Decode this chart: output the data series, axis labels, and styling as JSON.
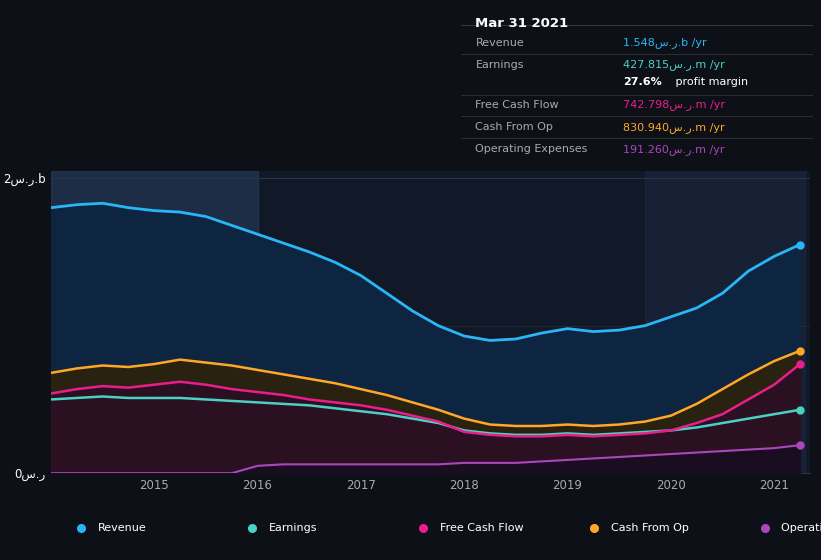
{
  "bg_color": "#0d1117",
  "plot_bg_color": "#111827",
  "x": [
    2014.0,
    2014.25,
    2014.5,
    2014.75,
    2015.0,
    2015.25,
    2015.5,
    2015.75,
    2016.0,
    2016.25,
    2016.5,
    2016.75,
    2017.0,
    2017.25,
    2017.5,
    2017.75,
    2018.0,
    2018.25,
    2018.5,
    2018.75,
    2019.0,
    2019.25,
    2019.5,
    2019.75,
    2020.0,
    2020.25,
    2020.5,
    2020.75,
    2021.0,
    2021.25
  ],
  "revenue": [
    1.8,
    1.82,
    1.83,
    1.8,
    1.78,
    1.77,
    1.74,
    1.68,
    1.62,
    1.56,
    1.5,
    1.43,
    1.34,
    1.22,
    1.1,
    1.0,
    0.93,
    0.9,
    0.91,
    0.95,
    0.98,
    0.96,
    0.97,
    1.0,
    1.06,
    1.12,
    1.22,
    1.37,
    1.47,
    1.55
  ],
  "earnings": [
    0.5,
    0.51,
    0.52,
    0.51,
    0.51,
    0.51,
    0.5,
    0.49,
    0.48,
    0.47,
    0.46,
    0.44,
    0.42,
    0.4,
    0.37,
    0.34,
    0.29,
    0.27,
    0.26,
    0.26,
    0.27,
    0.26,
    0.27,
    0.28,
    0.29,
    0.31,
    0.34,
    0.37,
    0.4,
    0.43
  ],
  "free_cash_flow": [
    0.54,
    0.57,
    0.59,
    0.58,
    0.6,
    0.62,
    0.6,
    0.57,
    0.55,
    0.53,
    0.5,
    0.48,
    0.46,
    0.43,
    0.39,
    0.35,
    0.28,
    0.26,
    0.25,
    0.25,
    0.26,
    0.25,
    0.26,
    0.27,
    0.29,
    0.34,
    0.4,
    0.5,
    0.6,
    0.74
  ],
  "cash_from_op": [
    0.68,
    0.71,
    0.73,
    0.72,
    0.74,
    0.77,
    0.75,
    0.73,
    0.7,
    0.67,
    0.64,
    0.61,
    0.57,
    0.53,
    0.48,
    0.43,
    0.37,
    0.33,
    0.32,
    0.32,
    0.33,
    0.32,
    0.33,
    0.35,
    0.39,
    0.47,
    0.57,
    0.67,
    0.76,
    0.83
  ],
  "op_expenses": [
    0.0,
    0.0,
    0.0,
    0.0,
    0.0,
    0.0,
    0.0,
    0.0,
    0.05,
    0.06,
    0.06,
    0.06,
    0.06,
    0.06,
    0.06,
    0.06,
    0.07,
    0.07,
    0.07,
    0.08,
    0.09,
    0.1,
    0.11,
    0.12,
    0.13,
    0.14,
    0.15,
    0.16,
    0.17,
    0.19
  ],
  "revenue_color": "#29b6f6",
  "revenue_fill": "#1a3a5c",
  "earnings_color": "#4dd0c4",
  "earnings_fill": "#2a5a50",
  "free_cash_flow_color": "#e91e8c",
  "cash_from_op_color": "#ffa726",
  "op_expenses_color": "#ab47bc",
  "highlight1_x1": 2014.0,
  "highlight1_x2": 2016.0,
  "highlight1_color": "#2a4060",
  "highlight2_x1": 2019.75,
  "highlight2_x2": 2021.3,
  "highlight2_color": "#1e2d4a",
  "ylim": [
    0,
    2.05
  ],
  "xlim": [
    2014.0,
    2021.35
  ],
  "ytick_pos": [
    0,
    2
  ],
  "ytick_labels": [
    "0س.ر",
    "2س.ر.b"
  ],
  "xticks": [
    2015,
    2016,
    2017,
    2018,
    2019,
    2020,
    2021
  ],
  "grid_color": "#2a3444",
  "legend_items": [
    {
      "label": "Revenue",
      "color": "#29b6f6"
    },
    {
      "label": "Earnings",
      "color": "#4dd0c4"
    },
    {
      "label": "Free Cash Flow",
      "color": "#e91e8c"
    },
    {
      "label": "Cash From Op",
      "color": "#ffa726"
    },
    {
      "label": "Operating Expenses",
      "color": "#ab47bc"
    }
  ],
  "table_title": "Mar 31 2021",
  "table_rows": [
    {
      "label": "Revenue",
      "value": "1.548س.ر.b /yr",
      "color": "#29b6f6"
    },
    {
      "label": "Earnings",
      "value": "427.815س.ر.m /yr",
      "color": "#4dd0c4"
    },
    {
      "label": "",
      "value": "27.6% profit margin",
      "color": "#ffffff",
      "bold_prefix": "27.6%"
    },
    {
      "label": "Free Cash Flow",
      "value": "742.798س.ر.m /yr",
      "color": "#e91e8c"
    },
    {
      "label": "Cash From Op",
      "value": "830.940س.ر.m /yr",
      "color": "#ffa726"
    },
    {
      "label": "Operating Expenses",
      "value": "191.260س.ر.m /yr",
      "color": "#ab47bc"
    }
  ]
}
